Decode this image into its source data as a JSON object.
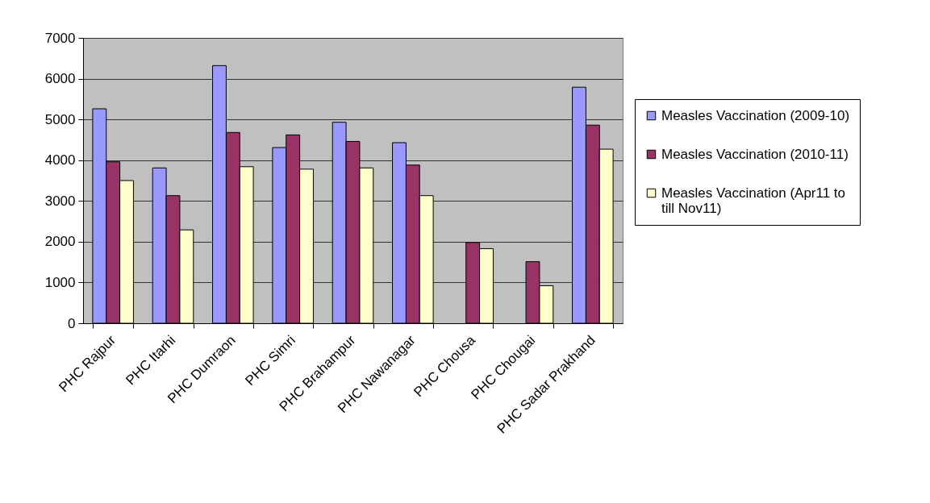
{
  "chart_data": {
    "type": "bar",
    "categories": [
      "PHC Rajpur",
      "PHC Itarhi",
      "PHC Dumraon",
      "PHC Simri",
      "PHC Brahampur",
      "PHC Nawanagar",
      "PHC Chousa",
      "PHC Chougai",
      "PHC Sadar Prakhand"
    ],
    "series": [
      {
        "name": "Measles Vaccination (2009-10)",
        "color": "#9999ff",
        "values": [
          5260,
          3810,
          6320,
          4310,
          4930,
          4430,
          null,
          null,
          5790
        ]
      },
      {
        "name": "Measles Vaccination (2010-11)",
        "color": "#993366",
        "values": [
          3960,
          3130,
          4680,
          4620,
          4460,
          3880,
          1980,
          1510,
          4860
        ]
      },
      {
        "name": "Measles Vaccination (Apr11 to till Nov11)",
        "color": "#ffffcc",
        "values": [
          3500,
          2290,
          3840,
          3780,
          3810,
          3130,
          1830,
          920,
          4270
        ]
      }
    ],
    "ylim": [
      0,
      7000
    ],
    "yticks": [
      0,
      1000,
      2000,
      3000,
      4000,
      5000,
      6000,
      7000
    ],
    "grid": "y",
    "legend": "right"
  }
}
